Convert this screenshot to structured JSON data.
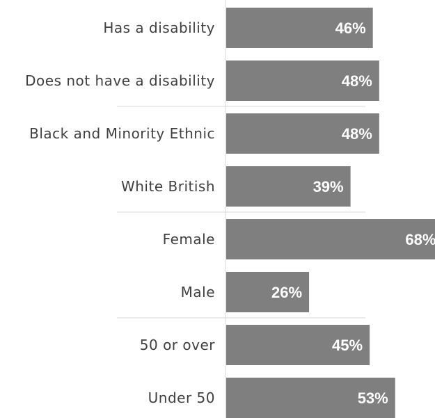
{
  "chart_data": {
    "type": "bar",
    "orientation": "horizontal",
    "categories": [
      "Has a disability",
      "Does not have a disability",
      "Black and Minority Ethnic",
      "White British",
      "Female",
      "Male",
      "50 or over",
      "Under 50"
    ],
    "values": [
      46,
      48,
      48,
      39,
      68,
      26,
      45,
      53
    ],
    "value_labels": [
      "46%",
      "48%",
      "48%",
      "39%",
      "68%",
      "26%",
      "45%",
      "53%"
    ],
    "groups": [
      [
        "Has a disability",
        "Does not have a disability"
      ],
      [
        "Black and Minority Ethnic",
        "White British"
      ],
      [
        "Female",
        "Male"
      ],
      [
        "50 or over",
        "Under 50"
      ]
    ],
    "title": "",
    "xlabel": "",
    "ylabel": "",
    "grid": false,
    "legend": "none",
    "colors": {
      "bar": "#7f7f7f",
      "value_text": "#ffffff",
      "category_text": "#404040",
      "divider": "#d9d9d9",
      "axis": "#d9d9d9"
    }
  }
}
